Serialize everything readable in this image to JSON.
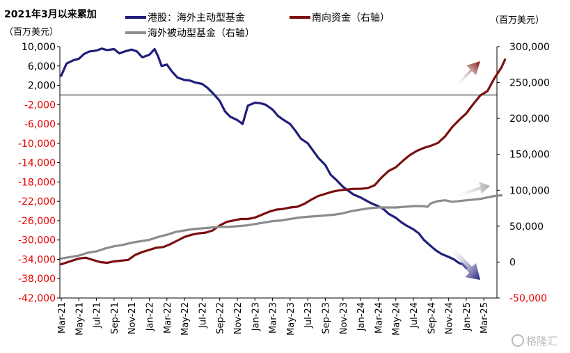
{
  "title": "2021年3月以来累加",
  "left_unit": "（百万美元）",
  "right_unit": "（百万美元）",
  "watermark": "格隆汇",
  "colors": {
    "hk_stock": "#1f1f7a",
    "southbound": "#7a1010",
    "passive": "#8c8c8c",
    "negative_tick": "#e60000",
    "positive_tick": "#000000"
  },
  "chart_data": {
    "type": "line",
    "title": "2021年3月以来累加",
    "x_ticks": [
      "Mar-21",
      "May-21",
      "Jul-21",
      "Sep-21",
      "Nov-21",
      "Jan-22",
      "Mar-22",
      "May-22",
      "Jul-22",
      "Sep-22",
      "Nov-22",
      "Jan-23",
      "Mar-23",
      "May-23",
      "Jul-23",
      "Sep-23",
      "Nov-23",
      "Jan-24",
      "Mar-24",
      "May-24",
      "Jul-24",
      "Sep-24",
      "Nov-24",
      "Jan-25",
      "Mar-25"
    ],
    "left_axis": {
      "unit": "（百万美元）",
      "ylim": [
        -42000,
        10000
      ],
      "ticks": [
        10000,
        6000,
        2000,
        -2000,
        -6000,
        -10000,
        -14000,
        -18000,
        -22000,
        -26000,
        -30000,
        -34000,
        -38000,
        -42000
      ],
      "tick_labels": [
        "10,000",
        "6,000",
        "2,000",
        "-2,000",
        "-6,000",
        "-10,000",
        "-14,000",
        "-18,000",
        "-22,000",
        "-26,000",
        "-30,000",
        "-34,000",
        "-38,000",
        "-42,000"
      ]
    },
    "right_axis": {
      "unit": "（百万美元）",
      "ylim": [
        -50000,
        300000
      ],
      "ticks": [
        300000,
        250000,
        200000,
        150000,
        100000,
        50000,
        0,
        -50000
      ],
      "tick_labels": [
        "300,000",
        "250,000",
        "200,000",
        "150,000",
        "100,000",
        "50,000",
        "0",
        "-50,000"
      ]
    },
    "series": [
      {
        "name": "港股：海外主动型基金",
        "axis": "left",
        "color": "#1f1f7a",
        "arrow": "down",
        "points": [
          [
            0,
            4000
          ],
          [
            0.3,
            6500
          ],
          [
            0.7,
            7200
          ],
          [
            1,
            7500
          ],
          [
            1.3,
            8500
          ],
          [
            1.6,
            9000
          ],
          [
            2,
            9200
          ],
          [
            2.3,
            9600
          ],
          [
            2.6,
            9300
          ],
          [
            3,
            9500
          ],
          [
            3.3,
            8600
          ],
          [
            3.6,
            9000
          ],
          [
            4,
            9400
          ],
          [
            4.3,
            9000
          ],
          [
            4.6,
            7800
          ],
          [
            5,
            8300
          ],
          [
            5.3,
            9500
          ],
          [
            5.5,
            8000
          ],
          [
            5.7,
            6000
          ],
          [
            6,
            6300
          ],
          [
            6.3,
            4800
          ],
          [
            6.6,
            3600
          ],
          [
            7,
            3100
          ],
          [
            7.3,
            3000
          ],
          [
            7.6,
            2600
          ],
          [
            8,
            2300
          ],
          [
            8.3,
            1500
          ],
          [
            8.6,
            400
          ],
          [
            9,
            -1200
          ],
          [
            9.3,
            -3400
          ],
          [
            9.6,
            -4500
          ],
          [
            10,
            -5200
          ],
          [
            10.3,
            -6000
          ],
          [
            10.6,
            -2200
          ],
          [
            11,
            -1600
          ],
          [
            11.3,
            -1700
          ],
          [
            11.6,
            -2000
          ],
          [
            12,
            -3000
          ],
          [
            12.3,
            -4300
          ],
          [
            12.6,
            -5100
          ],
          [
            13,
            -6000
          ],
          [
            13.3,
            -7400
          ],
          [
            13.6,
            -9000
          ],
          [
            14,
            -10000
          ],
          [
            14.3,
            -11500
          ],
          [
            14.6,
            -13000
          ],
          [
            15,
            -14500
          ],
          [
            15.3,
            -16500
          ],
          [
            15.6,
            -17500
          ],
          [
            16,
            -19000
          ],
          [
            16.3,
            -19800
          ],
          [
            16.6,
            -20600
          ],
          [
            17,
            -21200
          ],
          [
            17.3,
            -21800
          ],
          [
            17.6,
            -22400
          ],
          [
            18,
            -23000
          ],
          [
            18.3,
            -23600
          ],
          [
            18.6,
            -24600
          ],
          [
            19,
            -25400
          ],
          [
            19.3,
            -26300
          ],
          [
            19.6,
            -27000
          ],
          [
            20,
            -27800
          ],
          [
            20.3,
            -28600
          ],
          [
            20.6,
            -30000
          ],
          [
            21,
            -31300
          ],
          [
            21.3,
            -32200
          ],
          [
            21.6,
            -32900
          ],
          [
            22,
            -33500
          ],
          [
            22.3,
            -34000
          ],
          [
            22.6,
            -34800
          ],
          [
            22.8,
            -35000
          ],
          [
            23,
            -35800
          ]
        ]
      },
      {
        "name": "南向资金（右轴）",
        "axis": "right",
        "color": "#7a1010",
        "arrow": "up",
        "points": [
          [
            0,
            -3000
          ],
          [
            0.5,
            1000
          ],
          [
            1,
            5000
          ],
          [
            1.4,
            6000
          ],
          [
            1.8,
            3000
          ],
          [
            2.2,
            0
          ],
          [
            2.6,
            -1000
          ],
          [
            3,
            1000
          ],
          [
            3.4,
            2000
          ],
          [
            3.8,
            3000
          ],
          [
            4.2,
            10000
          ],
          [
            4.6,
            14000
          ],
          [
            5,
            17000
          ],
          [
            5.4,
            20000
          ],
          [
            5.8,
            21000
          ],
          [
            6.2,
            25000
          ],
          [
            6.6,
            30000
          ],
          [
            7,
            35000
          ],
          [
            7.4,
            38000
          ],
          [
            7.8,
            40000
          ],
          [
            8.2,
            41000
          ],
          [
            8.6,
            44000
          ],
          [
            9,
            51000
          ],
          [
            9.4,
            56000
          ],
          [
            9.8,
            58000
          ],
          [
            10.2,
            60000
          ],
          [
            10.6,
            60000
          ],
          [
            11,
            62000
          ],
          [
            11.4,
            66000
          ],
          [
            11.8,
            70000
          ],
          [
            12.2,
            73000
          ],
          [
            12.6,
            74000
          ],
          [
            13,
            76000
          ],
          [
            13.4,
            77000
          ],
          [
            13.8,
            81000
          ],
          [
            14.2,
            87000
          ],
          [
            14.6,
            92000
          ],
          [
            15,
            95000
          ],
          [
            15.4,
            98000
          ],
          [
            15.8,
            100000
          ],
          [
            16.2,
            101000
          ],
          [
            16.6,
            102000
          ],
          [
            17,
            102000
          ],
          [
            17.4,
            103000
          ],
          [
            17.8,
            107000
          ],
          [
            18.2,
            118000
          ],
          [
            18.6,
            127000
          ],
          [
            19,
            132000
          ],
          [
            19.4,
            141000
          ],
          [
            19.8,
            149000
          ],
          [
            20.2,
            155000
          ],
          [
            20.6,
            159000
          ],
          [
            21,
            162000
          ],
          [
            21.4,
            166000
          ],
          [
            21.8,
            175000
          ],
          [
            22.2,
            188000
          ],
          [
            22.6,
            198000
          ],
          [
            23,
            207000
          ],
          [
            23.4,
            220000
          ],
          [
            23.8,
            232000
          ],
          [
            24.2,
            238000
          ],
          [
            24.6,
            256000
          ],
          [
            25,
            271000
          ],
          [
            25.2,
            282000
          ]
        ]
      },
      {
        "name": "海外被动型基金（右轴）",
        "axis": "right",
        "color": "#8c8c8c",
        "arrow": "up-right",
        "points": [
          [
            0,
            5000
          ],
          [
            0.5,
            7000
          ],
          [
            1,
            9000
          ],
          [
            1.5,
            13000
          ],
          [
            2,
            15000
          ],
          [
            2.5,
            19000
          ],
          [
            3,
            22000
          ],
          [
            3.5,
            24000
          ],
          [
            4,
            27000
          ],
          [
            4.5,
            29000
          ],
          [
            5,
            31000
          ],
          [
            5.5,
            35000
          ],
          [
            6,
            38000
          ],
          [
            6.5,
            42000
          ],
          [
            7,
            44000
          ],
          [
            7.5,
            46000
          ],
          [
            8,
            47000
          ],
          [
            8.5,
            48000
          ],
          [
            9,
            49000
          ],
          [
            9.5,
            49000
          ],
          [
            10,
            50000
          ],
          [
            10.5,
            51000
          ],
          [
            11,
            53000
          ],
          [
            11.5,
            55000
          ],
          [
            12,
            57000
          ],
          [
            12.5,
            58000
          ],
          [
            13,
            60000
          ],
          [
            13.5,
            62000
          ],
          [
            14,
            63000
          ],
          [
            14.5,
            64000
          ],
          [
            15,
            65000
          ],
          [
            15.5,
            66000
          ],
          [
            16,
            68000
          ],
          [
            16.5,
            71000
          ],
          [
            17,
            73000
          ],
          [
            17.5,
            75000
          ],
          [
            18,
            76000
          ],
          [
            18.5,
            76000
          ],
          [
            19,
            76000
          ],
          [
            19.5,
            77000
          ],
          [
            20,
            78000
          ],
          [
            20.5,
            78000
          ],
          [
            20.8,
            77000
          ],
          [
            21,
            82000
          ],
          [
            21.4,
            85000
          ],
          [
            21.8,
            86000
          ],
          [
            22.2,
            84000
          ],
          [
            22.6,
            85000
          ],
          [
            23,
            86000
          ],
          [
            23.4,
            87000
          ],
          [
            23.8,
            88000
          ],
          [
            24.2,
            90000
          ],
          [
            24.6,
            92000
          ],
          [
            25,
            93000
          ]
        ]
      }
    ],
    "legend": [
      "港股：海外主动型基金",
      "南向资金（右轴）",
      "海外被动型基金（右轴）"
    ],
    "legend_position": "top",
    "grid": false
  }
}
